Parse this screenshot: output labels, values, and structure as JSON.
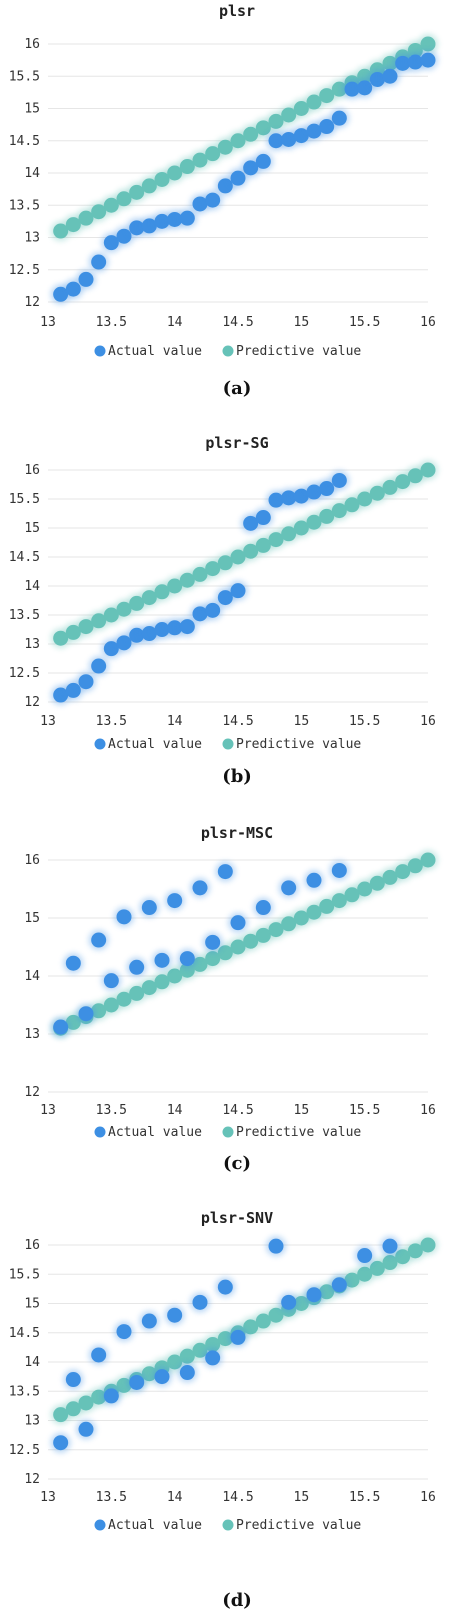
{
  "colors": {
    "actual": "#3d8fe3",
    "predictive": "#66c2b8",
    "grid": "#e6e6e6"
  },
  "chart_data": [
    {
      "type": "scatter",
      "title": "plsr",
      "caption": "(a)",
      "xlim": [
        13,
        16
      ],
      "ylim": [
        12,
        16
      ],
      "x_ticks": [
        "13",
        "13.5",
        "14",
        "14.5",
        "15",
        "15.5",
        "16"
      ],
      "y_ticks": [
        "12",
        "12.5",
        "13",
        "13.5",
        "14",
        "14.5",
        "15",
        "15.5",
        "16"
      ],
      "legend": [
        "Actual value",
        "Predictive value"
      ],
      "series": [
        {
          "name": "Actual value",
          "points": [
            [
              13.1,
              12.12
            ],
            [
              13.2,
              12.2
            ],
            [
              13.3,
              12.35
            ],
            [
              13.4,
              12.62
            ],
            [
              13.5,
              12.92
            ],
            [
              13.6,
              13.02
            ],
            [
              13.7,
              13.15
            ],
            [
              13.8,
              13.18
            ],
            [
              13.9,
              13.25
            ],
            [
              14.0,
              13.28
            ],
            [
              14.1,
              13.3
            ],
            [
              14.2,
              13.52
            ],
            [
              14.3,
              13.58
            ],
            [
              14.4,
              13.8
            ],
            [
              14.5,
              13.92
            ],
            [
              14.6,
              14.08
            ],
            [
              14.7,
              14.18
            ],
            [
              14.8,
              14.5
            ],
            [
              14.9,
              14.52
            ],
            [
              15.0,
              14.58
            ],
            [
              15.1,
              14.65
            ],
            [
              15.2,
              14.72
            ],
            [
              15.3,
              14.85
            ],
            [
              15.4,
              15.3
            ],
            [
              15.5,
              15.32
            ],
            [
              15.6,
              15.45
            ],
            [
              15.7,
              15.5
            ],
            [
              15.8,
              15.7
            ],
            [
              15.9,
              15.72
            ],
            [
              16.0,
              15.75
            ]
          ]
        },
        {
          "name": "Predictive value",
          "points": [
            [
              13.1,
              13.1
            ],
            [
              13.2,
              13.2
            ],
            [
              13.3,
              13.3
            ],
            [
              13.4,
              13.4
            ],
            [
              13.5,
              13.5
            ],
            [
              13.6,
              13.6
            ],
            [
              13.7,
              13.7
            ],
            [
              13.8,
              13.8
            ],
            [
              13.9,
              13.9
            ],
            [
              14.0,
              14.0
            ],
            [
              14.1,
              14.1
            ],
            [
              14.2,
              14.2
            ],
            [
              14.3,
              14.3
            ],
            [
              14.4,
              14.4
            ],
            [
              14.5,
              14.5
            ],
            [
              14.6,
              14.6
            ],
            [
              14.7,
              14.7
            ],
            [
              14.8,
              14.8
            ],
            [
              14.9,
              14.9
            ],
            [
              15.0,
              15.0
            ],
            [
              15.1,
              15.1
            ],
            [
              15.2,
              15.2
            ],
            [
              15.3,
              15.3
            ],
            [
              15.4,
              15.4
            ],
            [
              15.5,
              15.5
            ],
            [
              15.6,
              15.6
            ],
            [
              15.7,
              15.7
            ],
            [
              15.8,
              15.8
            ],
            [
              15.9,
              15.9
            ],
            [
              16.0,
              16.0
            ]
          ]
        }
      ]
    },
    {
      "type": "scatter",
      "title": "plsr-SG",
      "caption": "(b)",
      "xlim": [
        13,
        16
      ],
      "ylim": [
        12,
        16
      ],
      "x_ticks": [
        "13",
        "13.5",
        "14",
        "14.5",
        "15",
        "15.5",
        "16"
      ],
      "y_ticks": [
        "12",
        "12.5",
        "13",
        "13.5",
        "14",
        "14.5",
        "15",
        "15.5",
        "16"
      ],
      "legend": [
        "Actual value",
        "Predictive value"
      ],
      "series": [
        {
          "name": "Actual value",
          "points": [
            [
              13.1,
              12.12
            ],
            [
              13.2,
              12.2
            ],
            [
              13.3,
              12.35
            ],
            [
              13.4,
              12.62
            ],
            [
              13.5,
              12.92
            ],
            [
              13.6,
              13.02
            ],
            [
              13.7,
              13.15
            ],
            [
              13.8,
              13.18
            ],
            [
              13.9,
              13.25
            ],
            [
              14.0,
              13.28
            ],
            [
              14.1,
              13.3
            ],
            [
              14.2,
              13.52
            ],
            [
              14.3,
              13.58
            ],
            [
              14.4,
              13.8
            ],
            [
              14.5,
              13.92
            ],
            [
              14.6,
              15.08
            ],
            [
              14.7,
              15.18
            ],
            [
              14.8,
              15.48
            ],
            [
              14.9,
              15.52
            ],
            [
              15.0,
              15.55
            ],
            [
              15.1,
              15.62
            ],
            [
              15.2,
              15.68
            ],
            [
              15.3,
              15.82
            ]
          ]
        },
        {
          "name": "Predictive value",
          "points": [
            [
              13.1,
              13.1
            ],
            [
              13.2,
              13.2
            ],
            [
              13.3,
              13.3
            ],
            [
              13.4,
              13.4
            ],
            [
              13.5,
              13.5
            ],
            [
              13.6,
              13.6
            ],
            [
              13.7,
              13.7
            ],
            [
              13.8,
              13.8
            ],
            [
              13.9,
              13.9
            ],
            [
              14.0,
              14.0
            ],
            [
              14.1,
              14.1
            ],
            [
              14.2,
              14.2
            ],
            [
              14.3,
              14.3
            ],
            [
              14.4,
              14.4
            ],
            [
              14.5,
              14.5
            ],
            [
              14.6,
              14.6
            ],
            [
              14.7,
              14.7
            ],
            [
              14.8,
              14.8
            ],
            [
              14.9,
              14.9
            ],
            [
              15.0,
              15.0
            ],
            [
              15.1,
              15.1
            ],
            [
              15.2,
              15.2
            ],
            [
              15.3,
              15.3
            ],
            [
              15.4,
              15.4
            ],
            [
              15.5,
              15.5
            ],
            [
              15.6,
              15.6
            ],
            [
              15.7,
              15.7
            ],
            [
              15.8,
              15.8
            ],
            [
              15.9,
              15.9
            ],
            [
              16.0,
              16.0
            ]
          ]
        }
      ]
    },
    {
      "type": "scatter",
      "title": "plsr-MSC",
      "caption": "(c)",
      "xlim": [
        13,
        16
      ],
      "ylim": [
        12,
        16
      ],
      "x_ticks": [
        "13",
        "13.5",
        "14",
        "14.5",
        "15",
        "15.5",
        "16"
      ],
      "y_ticks": [
        "12",
        "13",
        "14",
        "15",
        "16"
      ],
      "legend": [
        "Actual value",
        "Predictive value"
      ],
      "series": [
        {
          "name": "Actual value",
          "points": [
            [
              13.1,
              13.12
            ],
            [
              13.2,
              14.22
            ],
            [
              13.3,
              13.35
            ],
            [
              13.4,
              14.62
            ],
            [
              13.5,
              13.92
            ],
            [
              13.6,
              15.02
            ],
            [
              13.7,
              14.15
            ],
            [
              13.8,
              15.18
            ],
            [
              13.9,
              14.27
            ],
            [
              14.0,
              15.3
            ],
            [
              14.1,
              14.3
            ],
            [
              14.2,
              15.52
            ],
            [
              14.3,
              14.58
            ],
            [
              14.4,
              15.8
            ],
            [
              14.5,
              14.92
            ],
            [
              14.7,
              15.18
            ],
            [
              14.9,
              15.52
            ],
            [
              15.1,
              15.65
            ],
            [
              15.3,
              15.82
            ]
          ]
        },
        {
          "name": "Predictive value",
          "points": [
            [
              13.1,
              13.1
            ],
            [
              13.2,
              13.2
            ],
            [
              13.3,
              13.3
            ],
            [
              13.4,
              13.4
            ],
            [
              13.5,
              13.5
            ],
            [
              13.6,
              13.6
            ],
            [
              13.7,
              13.7
            ],
            [
              13.8,
              13.8
            ],
            [
              13.9,
              13.9
            ],
            [
              14.0,
              14.0
            ],
            [
              14.1,
              14.1
            ],
            [
              14.2,
              14.2
            ],
            [
              14.3,
              14.3
            ],
            [
              14.4,
              14.4
            ],
            [
              14.5,
              14.5
            ],
            [
              14.6,
              14.6
            ],
            [
              14.7,
              14.7
            ],
            [
              14.8,
              14.8
            ],
            [
              14.9,
              14.9
            ],
            [
              15.0,
              15.0
            ],
            [
              15.1,
              15.1
            ],
            [
              15.2,
              15.2
            ],
            [
              15.3,
              15.3
            ],
            [
              15.4,
              15.4
            ],
            [
              15.5,
              15.5
            ],
            [
              15.6,
              15.6
            ],
            [
              15.7,
              15.7
            ],
            [
              15.8,
              15.8
            ],
            [
              15.9,
              15.9
            ],
            [
              16.0,
              16.0
            ]
          ]
        }
      ]
    },
    {
      "type": "scatter",
      "title": "plsr-SNV",
      "caption": "(d)",
      "xlim": [
        13,
        16
      ],
      "ylim": [
        12,
        16
      ],
      "x_ticks": [
        "13",
        "13.5",
        "14",
        "14.5",
        "15",
        "15.5",
        "16"
      ],
      "y_ticks": [
        "12",
        "12.5",
        "13",
        "13.5",
        "14",
        "14.5",
        "15",
        "15.5",
        "16"
      ],
      "legend": [
        "Actual value",
        "Predictive value"
      ],
      "series": [
        {
          "name": "Actual value",
          "points": [
            [
              13.1,
              12.62
            ],
            [
              13.2,
              13.7
            ],
            [
              13.3,
              12.85
            ],
            [
              13.4,
              14.12
            ],
            [
              13.5,
              13.42
            ],
            [
              13.6,
              14.52
            ],
            [
              13.7,
              13.65
            ],
            [
              13.8,
              14.7
            ],
            [
              13.9,
              13.75
            ],
            [
              14.0,
              14.8
            ],
            [
              14.1,
              13.82
            ],
            [
              14.2,
              15.02
            ],
            [
              14.3,
              14.07
            ],
            [
              14.4,
              15.28
            ],
            [
              14.5,
              14.42
            ],
            [
              14.8,
              15.98
            ],
            [
              14.9,
              15.02
            ],
            [
              15.1,
              15.15
            ],
            [
              15.3,
              15.32
            ],
            [
              15.5,
              15.82
            ],
            [
              15.7,
              15.98
            ]
          ]
        },
        {
          "name": "Predictive value",
          "points": [
            [
              13.1,
              13.1
            ],
            [
              13.2,
              13.2
            ],
            [
              13.3,
              13.3
            ],
            [
              13.4,
              13.4
            ],
            [
              13.5,
              13.5
            ],
            [
              13.6,
              13.6
            ],
            [
              13.7,
              13.7
            ],
            [
              13.8,
              13.8
            ],
            [
              13.9,
              13.9
            ],
            [
              14.0,
              14.0
            ],
            [
              14.1,
              14.1
            ],
            [
              14.2,
              14.2
            ],
            [
              14.3,
              14.3
            ],
            [
              14.4,
              14.4
            ],
            [
              14.5,
              14.5
            ],
            [
              14.6,
              14.6
            ],
            [
              14.7,
              14.7
            ],
            [
              14.8,
              14.8
            ],
            [
              14.9,
              14.9
            ],
            [
              15.0,
              15.0
            ],
            [
              15.1,
              15.1
            ],
            [
              15.2,
              15.2
            ],
            [
              15.3,
              15.3
            ],
            [
              15.4,
              15.4
            ],
            [
              15.5,
              15.5
            ],
            [
              15.6,
              15.6
            ],
            [
              15.7,
              15.7
            ],
            [
              15.8,
              15.8
            ],
            [
              15.9,
              15.9
            ],
            [
              16.0,
              16.0
            ]
          ]
        }
      ]
    }
  ]
}
